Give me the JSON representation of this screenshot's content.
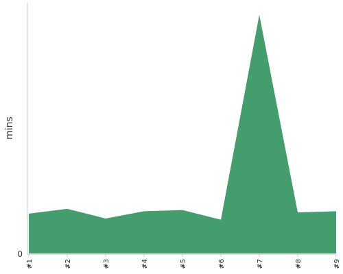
{
  "chart_data": {
    "type": "area",
    "categories": [
      "#1",
      "#2",
      "#3",
      "#4",
      "#5",
      "#6",
      "#7",
      "#8",
      "#9"
    ],
    "values": [
      1.65,
      1.85,
      1.45,
      1.75,
      1.8,
      1.4,
      9.9,
      1.7,
      1.75
    ],
    "ylabel": "mins",
    "xlabel": "",
    "ylim": [
      0,
      10.4
    ],
    "y_ticks": [
      {
        "value": 0,
        "label": "0"
      }
    ],
    "fill_color": "#449d6d",
    "axis_color": "#c8c8c8",
    "grid": false
  }
}
